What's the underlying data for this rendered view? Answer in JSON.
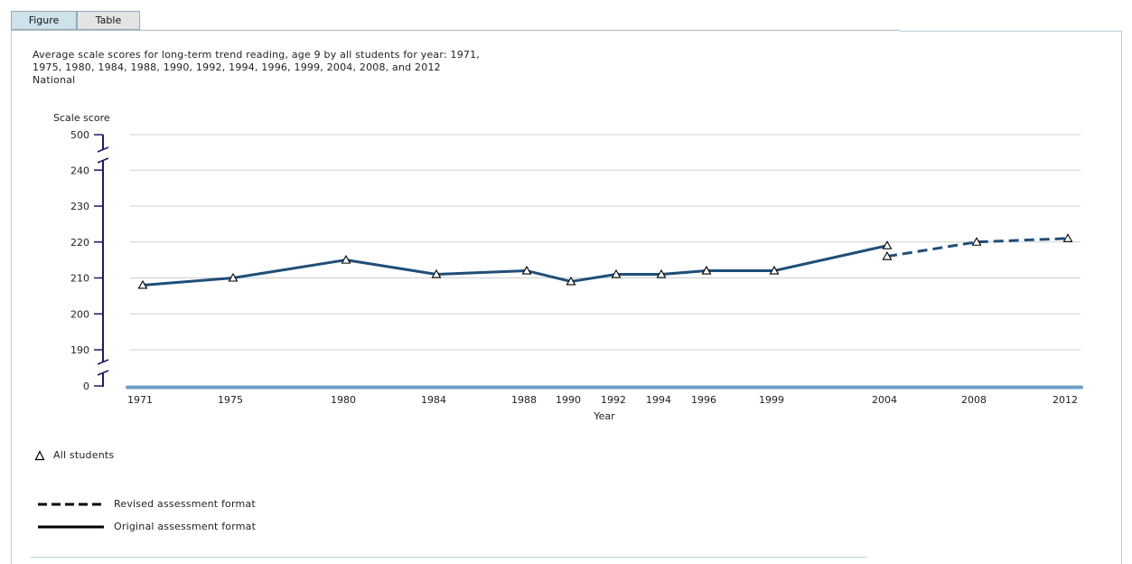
{
  "tabs": [
    {
      "label": "Figure",
      "active": true
    },
    {
      "label": "Table",
      "active": false
    }
  ],
  "title_lines": [
    "Average scale scores for long-term trend reading, age 9 by all students for year: 1971,",
    "1975, 1980, 1984, 1988, 1990, 1992, 1994, 1996, 1999, 2004, 2008, and 2012",
    "National"
  ],
  "chart_data": {
    "type": "line",
    "ylabel": "Scale score",
    "xlabel": "Year",
    "y_ticks": [
      "0",
      "190",
      "200",
      "210",
      "220",
      "230",
      "240",
      "500"
    ],
    "x_ticks": [
      "1971",
      "1975",
      "1980",
      "1984",
      "1988",
      "1990",
      "1992",
      "1994",
      "1996",
      "1999",
      "2004",
      "2008",
      "2012"
    ],
    "axis_breaks": [
      "between 0 and 190",
      "between 240 and 500"
    ],
    "grid": true,
    "series": [
      {
        "name": "Original assessment format",
        "style": "solid",
        "x": [
          "1971",
          "1975",
          "1980",
          "1984",
          "1988",
          "1990",
          "1992",
          "1994",
          "1996",
          "1999",
          "2004"
        ],
        "values": [
          208,
          210,
          215,
          211,
          212,
          209,
          211,
          211,
          212,
          212,
          219
        ]
      },
      {
        "name": "Revised assessment format",
        "style": "dashed",
        "x": [
          "2004",
          "2008",
          "2012"
        ],
        "values": [
          216,
          220,
          221
        ]
      }
    ],
    "colors": {
      "line": "#1f4e79",
      "baseline": "#6f9fc8",
      "axis": "#1a1a6e",
      "grid": "#d0d0d0"
    }
  },
  "legend": {
    "marker_label": "All students",
    "dashed_label": "Revised assessment format",
    "solid_label": "Original assessment format"
  }
}
